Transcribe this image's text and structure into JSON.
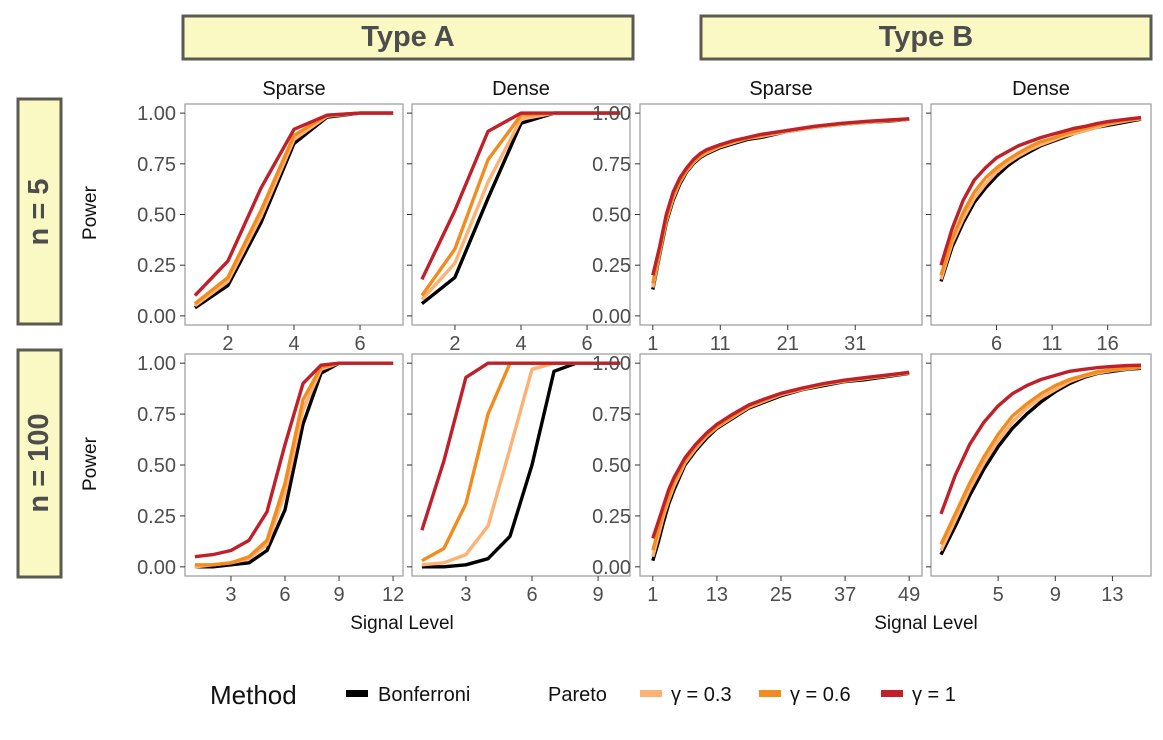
{
  "colors": {
    "bonferroni": "#000000",
    "gamma_0_3": "#fdb174",
    "gamma_0_6": "#f28c1e",
    "gamma_1": "#c0202a",
    "strip_fill": "#fbf9c3",
    "strip_border": "#5a5a50"
  },
  "strips": {
    "type_a": "Type A",
    "type_b": "Type B",
    "n5": "n = 5",
    "n100": "n = 100"
  },
  "axis": {
    "x_title": "Signal Level",
    "y_title": "Power"
  },
  "legend": {
    "title": "Method",
    "bonferroni": "Bonferroni",
    "pareto": "Pareto",
    "g03": "γ = 0.3",
    "g06": "γ = 0.6",
    "g1": "γ = 1"
  },
  "chart_data": [
    {
      "type": "line",
      "row": "n = 5",
      "group": "Type A",
      "title": "Sparse",
      "xlim": [
        0.7,
        7.3
      ],
      "ylim": [
        0,
        1
      ],
      "xticks": [
        2,
        4,
        6
      ],
      "yticks": [
        "0.00",
        "0.25",
        "0.50",
        "0.75",
        "1.00"
      ],
      "x": [
        1,
        2,
        3,
        4,
        5,
        6,
        7
      ],
      "series": [
        {
          "name": "Bonferroni",
          "values": [
            0.04,
            0.15,
            0.46,
            0.85,
            0.98,
            1.0,
            1.0
          ]
        },
        {
          "name": "γ = 0.3",
          "values": [
            0.05,
            0.17,
            0.49,
            0.87,
            0.985,
            1.0,
            1.0
          ]
        },
        {
          "name": "γ = 0.6",
          "values": [
            0.06,
            0.19,
            0.52,
            0.89,
            0.99,
            1.0,
            1.0
          ]
        },
        {
          "name": "γ = 1",
          "values": [
            0.1,
            0.27,
            0.63,
            0.92,
            0.99,
            1.0,
            1.0
          ]
        }
      ]
    },
    {
      "type": "line",
      "row": "n = 5",
      "group": "Type A",
      "title": "Dense",
      "xlim": [
        0.7,
        7.3
      ],
      "ylim": [
        0,
        1
      ],
      "xticks": [
        2,
        4,
        6
      ],
      "yticks": [],
      "x": [
        1,
        2,
        3,
        4,
        5,
        6,
        7
      ],
      "series": [
        {
          "name": "Bonferroni",
          "values": [
            0.06,
            0.19,
            0.58,
            0.95,
            1.0,
            1.0,
            1.0
          ]
        },
        {
          "name": "γ = 0.3",
          "values": [
            0.08,
            0.26,
            0.66,
            0.97,
            1.0,
            1.0,
            1.0
          ]
        },
        {
          "name": "γ = 0.6",
          "values": [
            0.1,
            0.33,
            0.77,
            0.99,
            1.0,
            1.0,
            1.0
          ]
        },
        {
          "name": "γ = 1",
          "values": [
            0.18,
            0.52,
            0.91,
            1.0,
            1.0,
            1.0,
            1.0
          ]
        }
      ]
    },
    {
      "type": "line",
      "row": "n = 5",
      "group": "Type B",
      "title": "Sparse",
      "xlim": [
        -0.9,
        40.9
      ],
      "ylim": [
        0,
        1
      ],
      "xticks": [
        1,
        11,
        21,
        31
      ],
      "yticks": [
        "0.00",
        "0.25",
        "0.50",
        "0.75",
        "1.00"
      ],
      "x": [
        1,
        2,
        3,
        4,
        5,
        6,
        7,
        8,
        9,
        11,
        13,
        15,
        17,
        21,
        25,
        29,
        33,
        36,
        39
      ],
      "series": [
        {
          "name": "Bonferroni",
          "values": [
            0.13,
            0.3,
            0.46,
            0.57,
            0.65,
            0.71,
            0.75,
            0.78,
            0.8,
            0.83,
            0.85,
            0.87,
            0.88,
            0.91,
            0.93,
            0.945,
            0.955,
            0.96,
            0.97
          ]
        },
        {
          "name": "γ = 0.3",
          "values": [
            0.14,
            0.31,
            0.47,
            0.58,
            0.66,
            0.715,
            0.755,
            0.785,
            0.805,
            0.835,
            0.855,
            0.875,
            0.885,
            0.91,
            0.93,
            0.945,
            0.955,
            0.962,
            0.97
          ]
        },
        {
          "name": "γ = 0.6",
          "values": [
            0.16,
            0.32,
            0.48,
            0.59,
            0.665,
            0.72,
            0.76,
            0.79,
            0.81,
            0.84,
            0.86,
            0.875,
            0.89,
            0.915,
            0.935,
            0.948,
            0.958,
            0.964,
            0.972
          ]
        },
        {
          "name": "γ = 1",
          "values": [
            0.2,
            0.34,
            0.5,
            0.61,
            0.68,
            0.73,
            0.77,
            0.8,
            0.82,
            0.845,
            0.865,
            0.88,
            0.895,
            0.915,
            0.935,
            0.95,
            0.96,
            0.966,
            0.972
          ]
        }
      ]
    },
    {
      "type": "line",
      "row": "n = 5",
      "group": "Type B",
      "title": "Dense",
      "xlim": [
        0.1,
        19.9
      ],
      "ylim": [
        0,
        1
      ],
      "xticks": [
        6,
        11,
        16
      ],
      "yticks": [],
      "x": [
        1,
        2,
        3,
        4,
        5,
        6,
        7,
        8,
        9,
        10,
        11,
        12,
        13,
        14,
        15,
        16,
        17,
        18,
        19
      ],
      "series": [
        {
          "name": "Bonferroni",
          "values": [
            0.17,
            0.34,
            0.46,
            0.56,
            0.63,
            0.69,
            0.74,
            0.78,
            0.81,
            0.84,
            0.86,
            0.88,
            0.9,
            0.915,
            0.93,
            0.94,
            0.95,
            0.96,
            0.97
          ]
        },
        {
          "name": "γ = 0.3",
          "values": [
            0.18,
            0.36,
            0.48,
            0.58,
            0.65,
            0.71,
            0.755,
            0.79,
            0.82,
            0.845,
            0.865,
            0.885,
            0.9,
            0.915,
            0.93,
            0.945,
            0.955,
            0.965,
            0.972
          ]
        },
        {
          "name": "γ = 0.6",
          "values": [
            0.2,
            0.38,
            0.51,
            0.61,
            0.68,
            0.73,
            0.77,
            0.805,
            0.835,
            0.86,
            0.875,
            0.895,
            0.91,
            0.925,
            0.94,
            0.95,
            0.96,
            0.968,
            0.975
          ]
        },
        {
          "name": "γ = 1",
          "values": [
            0.25,
            0.43,
            0.57,
            0.67,
            0.73,
            0.78,
            0.81,
            0.84,
            0.86,
            0.88,
            0.895,
            0.91,
            0.925,
            0.935,
            0.948,
            0.958,
            0.965,
            0.972,
            0.978
          ]
        }
      ]
    },
    {
      "type": "line",
      "row": "n = 100",
      "group": "Type A",
      "title": "Sparse",
      "xlim": [
        0.45,
        12.55
      ],
      "ylim": [
        0,
        1
      ],
      "xticks": [
        3,
        6,
        9,
        12
      ],
      "yticks": [
        "0.00",
        "0.25",
        "0.50",
        "0.75",
        "1.00"
      ],
      "x": [
        1,
        2,
        3,
        4,
        5,
        6,
        7,
        8,
        9,
        10,
        11,
        12
      ],
      "series": [
        {
          "name": "Bonferroni",
          "values": [
            0.0,
            0.0,
            0.01,
            0.02,
            0.08,
            0.28,
            0.7,
            0.95,
            1.0,
            1.0,
            1.0,
            1.0
          ]
        },
        {
          "name": "γ = 0.3",
          "values": [
            0.0,
            0.01,
            0.02,
            0.04,
            0.11,
            0.36,
            0.77,
            0.97,
            1.0,
            1.0,
            1.0,
            1.0
          ]
        },
        {
          "name": "γ = 0.6",
          "values": [
            0.01,
            0.01,
            0.02,
            0.05,
            0.13,
            0.41,
            0.82,
            0.98,
            1.0,
            1.0,
            1.0,
            1.0
          ]
        },
        {
          "name": "γ = 1",
          "values": [
            0.05,
            0.06,
            0.08,
            0.13,
            0.27,
            0.6,
            0.9,
            0.99,
            1.0,
            1.0,
            1.0,
            1.0
          ]
        }
      ]
    },
    {
      "type": "line",
      "row": "n = 100",
      "group": "Type A",
      "title": "Dense",
      "xlim": [
        0.55,
        10.45
      ],
      "ylim": [
        0,
        1
      ],
      "xticks": [
        3,
        6,
        9
      ],
      "yticks": [],
      "x": [
        1,
        2,
        3,
        4,
        5,
        6,
        7,
        8,
        9,
        10
      ],
      "series": [
        {
          "name": "Bonferroni",
          "values": [
            0.0,
            0.0,
            0.01,
            0.04,
            0.15,
            0.5,
            0.96,
            1.0,
            1.0,
            1.0
          ]
        },
        {
          "name": "γ = 0.3",
          "values": [
            0.01,
            0.02,
            0.06,
            0.2,
            0.58,
            0.97,
            1.0,
            1.0,
            1.0,
            1.0
          ]
        },
        {
          "name": "γ = 0.6",
          "values": [
            0.03,
            0.09,
            0.31,
            0.75,
            1.0,
            1.0,
            1.0,
            1.0,
            1.0,
            1.0
          ]
        },
        {
          "name": "γ = 1",
          "values": [
            0.18,
            0.52,
            0.93,
            1.0,
            1.0,
            1.0,
            1.0,
            1.0,
            1.0,
            1.0
          ]
        }
      ]
    },
    {
      "type": "line",
      "row": "n = 100",
      "group": "Type B",
      "title": "Sparse",
      "xlim": [
        -1.4,
        51.4
      ],
      "ylim": [
        0,
        1
      ],
      "xticks": [
        1,
        13,
        25,
        37,
        49
      ],
      "yticks": [
        "0.00",
        "0.25",
        "0.50",
        "0.75",
        "1.00"
      ],
      "x": [
        1,
        2,
        3,
        4,
        5,
        7,
        9,
        11,
        13,
        16,
        19,
        22,
        25,
        29,
        33,
        37,
        41,
        45,
        49
      ],
      "series": [
        {
          "name": "Bonferroni",
          "values": [
            0.03,
            0.12,
            0.22,
            0.31,
            0.38,
            0.5,
            0.57,
            0.63,
            0.68,
            0.73,
            0.78,
            0.81,
            0.84,
            0.87,
            0.89,
            0.91,
            0.92,
            0.935,
            0.95
          ]
        },
        {
          "name": "γ = 0.3",
          "values": [
            0.05,
            0.15,
            0.25,
            0.33,
            0.4,
            0.51,
            0.58,
            0.64,
            0.685,
            0.735,
            0.785,
            0.815,
            0.845,
            0.872,
            0.895,
            0.912,
            0.925,
            0.938,
            0.952
          ]
        },
        {
          "name": "γ = 0.6",
          "values": [
            0.08,
            0.18,
            0.27,
            0.35,
            0.42,
            0.52,
            0.59,
            0.645,
            0.69,
            0.74,
            0.79,
            0.82,
            0.85,
            0.875,
            0.898,
            0.915,
            0.928,
            0.94,
            0.953
          ]
        },
        {
          "name": "γ = 1",
          "values": [
            0.14,
            0.22,
            0.3,
            0.38,
            0.44,
            0.535,
            0.6,
            0.655,
            0.7,
            0.75,
            0.795,
            0.825,
            0.852,
            0.878,
            0.9,
            0.917,
            0.93,
            0.942,
            0.955
          ]
        }
      ]
    },
    {
      "type": "line",
      "row": "n = 100",
      "group": "Type B",
      "title": "Dense",
      "xlim": [
        0.3,
        15.7
      ],
      "ylim": [
        0,
        1
      ],
      "xticks": [
        5,
        9,
        13
      ],
      "yticks": [],
      "x": [
        1,
        2,
        3,
        4,
        5,
        6,
        7,
        8,
        9,
        10,
        11,
        12,
        13,
        14,
        15
      ],
      "series": [
        {
          "name": "Bonferroni",
          "values": [
            0.06,
            0.2,
            0.35,
            0.48,
            0.59,
            0.68,
            0.75,
            0.81,
            0.86,
            0.9,
            0.93,
            0.95,
            0.96,
            0.97,
            0.975
          ]
        },
        {
          "name": "γ = 0.3",
          "values": [
            0.08,
            0.23,
            0.38,
            0.51,
            0.62,
            0.71,
            0.78,
            0.83,
            0.87,
            0.91,
            0.935,
            0.952,
            0.965,
            0.972,
            0.978
          ]
        },
        {
          "name": "γ = 0.6",
          "values": [
            0.11,
            0.26,
            0.41,
            0.54,
            0.65,
            0.74,
            0.8,
            0.85,
            0.89,
            0.92,
            0.94,
            0.958,
            0.968,
            0.975,
            0.98
          ]
        },
        {
          "name": "γ = 1",
          "values": [
            0.26,
            0.45,
            0.6,
            0.71,
            0.79,
            0.85,
            0.89,
            0.92,
            0.94,
            0.96,
            0.97,
            0.978,
            0.984,
            0.988,
            0.99
          ]
        }
      ]
    }
  ]
}
